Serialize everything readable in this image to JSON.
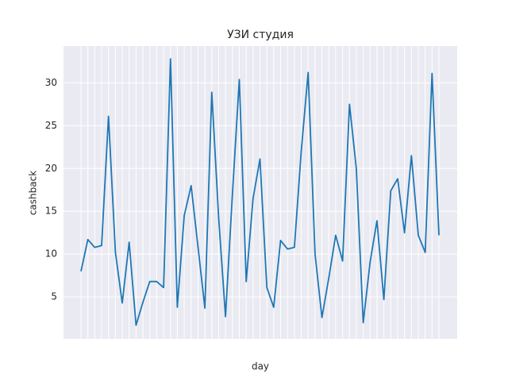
{
  "chart_data": {
    "type": "line",
    "title": "УЗИ студия",
    "xlabel": "day",
    "ylabel": "cashback",
    "categories": [
      null,
      null,
      null,
      null,
      null,
      null,
      null,
      null,
      null,
      null,
      null,
      null,
      null,
      null,
      null,
      null,
      null,
      null,
      null,
      null,
      null,
      null,
      null,
      null,
      null,
      null,
      null,
      null,
      null,
      null,
      null,
      null,
      null,
      null,
      null,
      null,
      null,
      null,
      null,
      null,
      null,
      null,
      null,
      null,
      null,
      null,
      null,
      null,
      null,
      null,
      null,
      null,
      null
    ],
    "series": [
      {
        "name": "cashback",
        "color": "#1f77b4",
        "values": [
          8.0,
          11.7,
          10.8,
          11.0,
          26.1,
          10.2,
          4.3,
          11.4,
          1.7,
          4.4,
          6.8,
          6.8,
          6.1,
          32.8,
          3.8,
          14.5,
          18.0,
          10.9,
          3.7,
          28.9,
          14.2,
          2.7,
          17.0,
          30.4,
          6.8,
          16.5,
          21.1,
          6.1,
          3.8,
          11.6,
          10.6,
          10.8,
          22.0,
          31.2,
          10.0,
          2.6,
          7.2,
          12.2,
          9.2,
          27.5,
          20.0,
          2.0,
          9.1,
          13.9,
          4.7,
          17.4,
          18.8,
          12.5,
          21.5,
          12.2,
          10.2,
          31.1,
          12.2
        ]
      }
    ],
    "ylim": [
      0.1,
      34.3
    ],
    "yticks": [
      5,
      10,
      15,
      20,
      25,
      30
    ],
    "grid": true
  }
}
